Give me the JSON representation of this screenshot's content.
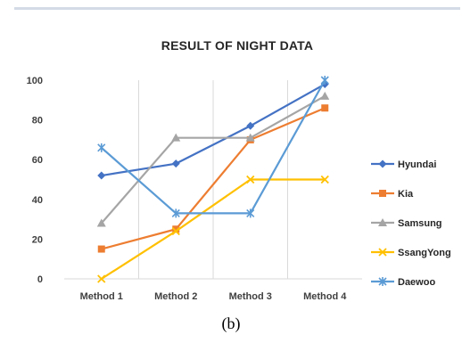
{
  "caption": "(b)",
  "chart_data": {
    "type": "line",
    "title": "RESULT OF NIGHT DATA",
    "categories": [
      "Method 1",
      "Method 2",
      "Method 3",
      "Method 4"
    ],
    "ylim": [
      0,
      100
    ],
    "yticks": [
      0,
      20,
      40,
      60,
      80,
      100
    ],
    "grid": "vertical",
    "legend_position": "right",
    "series": [
      {
        "name": "Hyundai",
        "values": [
          52,
          58,
          77,
          98
        ],
        "color": "#4472c4",
        "marker": "diamond"
      },
      {
        "name": "Kia",
        "values": [
          15,
          25,
          70,
          86
        ],
        "color": "#ed7d31",
        "marker": "square"
      },
      {
        "name": "Samsung",
        "values": [
          28,
          71,
          71,
          92
        ],
        "color": "#a5a5a5",
        "marker": "triangle"
      },
      {
        "name": "SsangYong",
        "values": [
          0,
          24,
          50,
          50
        ],
        "color": "#ffc000",
        "marker": "x"
      },
      {
        "name": "Daewoo",
        "values": [
          66,
          33,
          33,
          100
        ],
        "color": "#5b9bd5",
        "marker": "star"
      }
    ]
  }
}
